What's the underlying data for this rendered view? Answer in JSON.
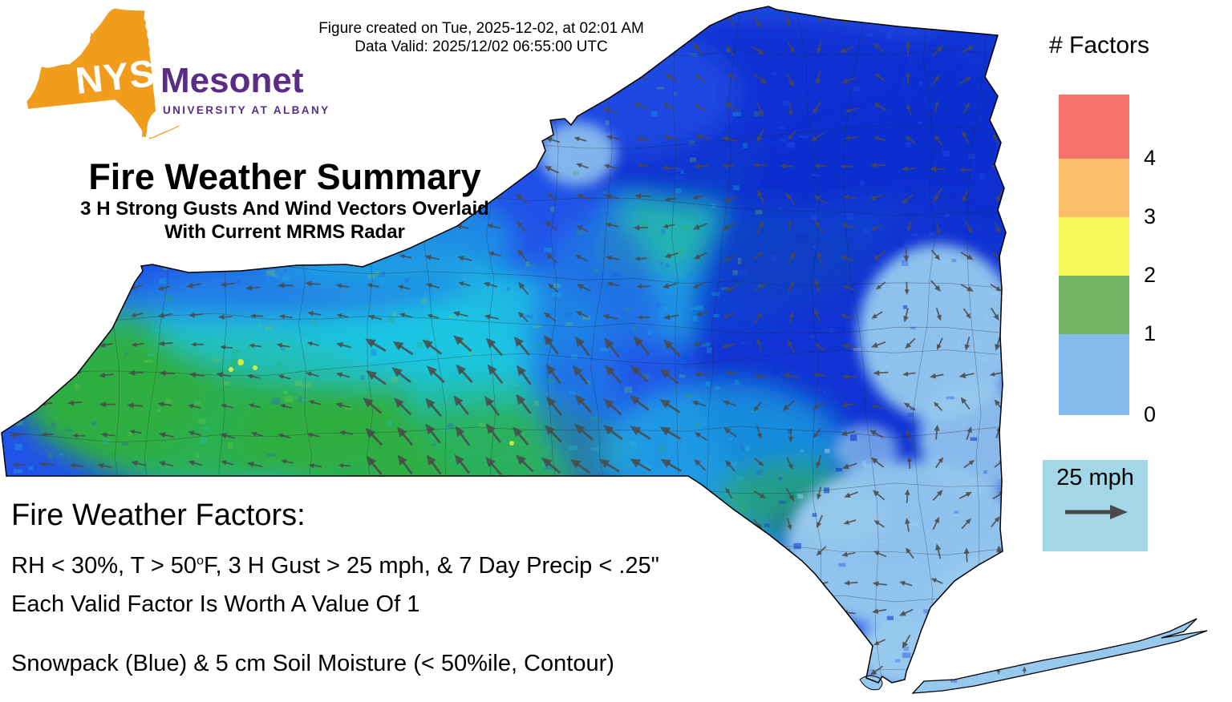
{
  "meta": {
    "created": "Figure created on Tue, 2025-12-02, at 02:01 AM",
    "valid": "Data Valid: 2025/12/02 06:55:00 UTC"
  },
  "logo": {
    "nys": "NYS",
    "mesonet": "Mesonet",
    "university": "UNIVERSITY AT ALBANY",
    "orange": "#f09d1d",
    "purple": "#592d86"
  },
  "title": "Fire Weather Summary",
  "subtitle1": "3 H Strong Gusts And Wind Vectors Overlaid",
  "subtitle2": "With Current MRMS Radar",
  "legend": {
    "title": "# Factors",
    "entries": [
      {
        "label": "4",
        "color": "#f5736a"
      },
      {
        "label": "3",
        "color": "#fbbd69"
      },
      {
        "label": "2",
        "color": "#f8f858"
      },
      {
        "label": "1",
        "color": "#74b266"
      },
      {
        "label": "0",
        "color": "#84baee"
      }
    ]
  },
  "wind_scale": {
    "label": "25 mph",
    "box_color": "#a3d7e8",
    "arrow_color": "#4a4a4a"
  },
  "factors": {
    "heading": "Fire Weather Factors:",
    "line1_part1": "RH < 30%, T > 50",
    "line1_sup": "o",
    "line1_part2": "F, 3 H Gust > 25 mph, & 7 Day Precip < .25\"",
    "line2": "Each Valid Factor Is Worth A Value Of 1",
    "line3": "Snowpack (Blue) & 5 cm Soil Moisture (< 50%ile, Contour)"
  },
  "map": {
    "outline_color": "#000000",
    "county_line_color": "#222222",
    "arrow_color": "#4a4a4a",
    "radar_palette": {
      "deep_blue": "#0a2ecf",
      "blue": "#2153e8",
      "cyan": "#1ec6e2",
      "green": "#2fae3f",
      "light_green": "#7fd14c",
      "snow": "#97c9ee",
      "yellow": "#e8f23c"
    }
  }
}
